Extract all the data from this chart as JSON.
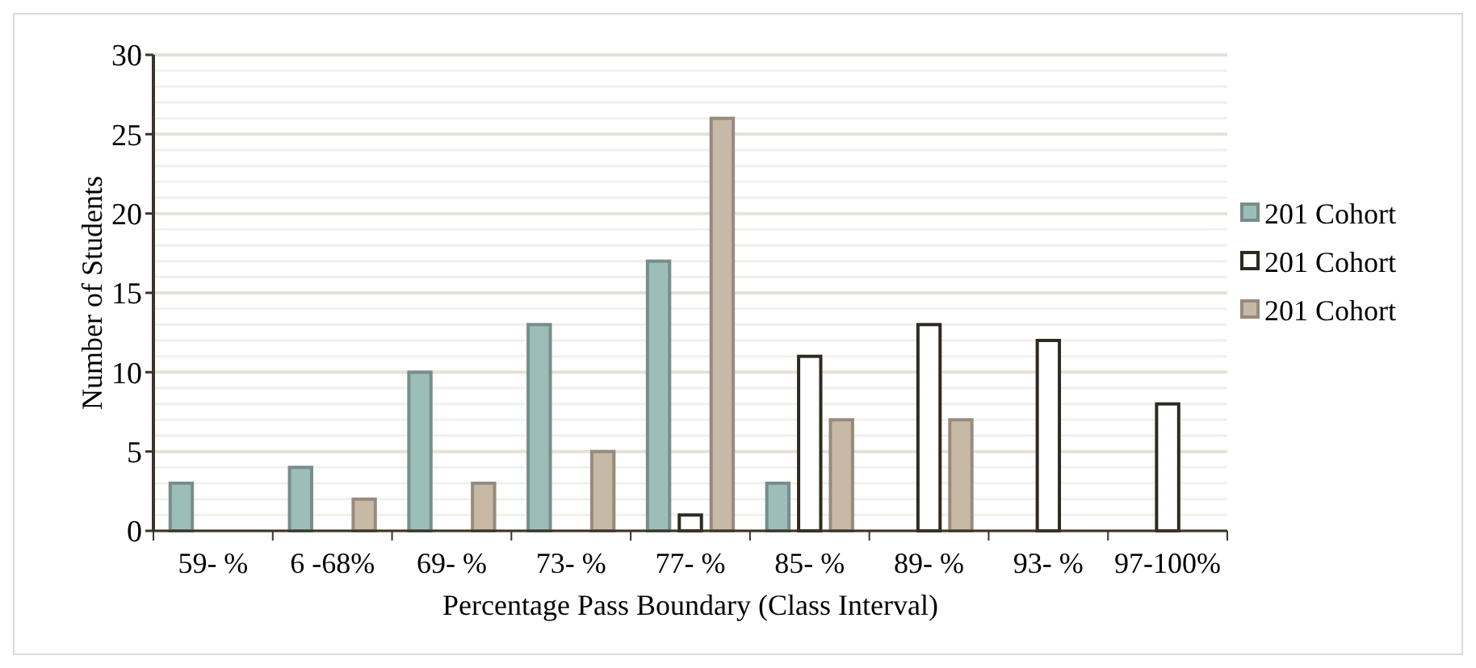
{
  "chart_data": {
    "type": "bar",
    "xlabel": "Percentage Pass Boundary (Class Interval)",
    "ylabel": "Number of Students",
    "categories": [
      "59- %",
      "6 -68%",
      "69- %",
      "73- %",
      "77- %",
      "85- %",
      "89- %",
      "93- %",
      "97-100%"
    ],
    "series": [
      {
        "name": "201 Cohort",
        "color": "#9dbdb9",
        "values": [
          3,
          4,
          10,
          13,
          17,
          3,
          null,
          null,
          null
        ]
      },
      {
        "name": "201 Cohort",
        "color": "#ffffff",
        "values": [
          null,
          null,
          null,
          null,
          1,
          11,
          13,
          12,
          8
        ]
      },
      {
        "name": "201 Cohort",
        "color": "#c8b9a6",
        "values": [
          null,
          2,
          3,
          5,
          26,
          7,
          7,
          null,
          null
        ]
      }
    ],
    "ylim": [
      0,
      30
    ],
    "yticks": [
      0,
      {
        "value": 1,
        "label": null
      },
      {
        "value": 2,
        "label": null
      },
      {
        "value": 3,
        "label": null
      },
      {
        "value": 4,
        "label": null
      },
      5,
      {
        "value": 6,
        "label": null
      },
      {
        "value": 7,
        "label": null
      },
      {
        "value": 8,
        "label": null
      },
      {
        "value": 9,
        "label": null
      },
      10,
      {
        "value": 11,
        "label": null
      },
      {
        "value": 12,
        "label": null
      },
      {
        "value": 13,
        "label": null
      },
      {
        "value": 14,
        "label": null
      },
      15,
      {
        "value": 16,
        "label": null
      },
      {
        "value": 17,
        "label": null
      },
      {
        "value": 18,
        "label": null
      },
      {
        "value": 19,
        "label": null
      },
      20,
      {
        "value": 21,
        "label": null
      },
      {
        "value": 22,
        "label": null
      },
      {
        "value": 23,
        "label": null
      },
      {
        "value": 24,
        "label": null
      },
      25,
      {
        "value": 26,
        "label": null
      },
      {
        "value": 27,
        "label": null
      },
      {
        "value": 28,
        "label": null
      },
      {
        "value": 29,
        "label": null
      },
      30
    ],
    "grid": "y",
    "legend": "right"
  }
}
